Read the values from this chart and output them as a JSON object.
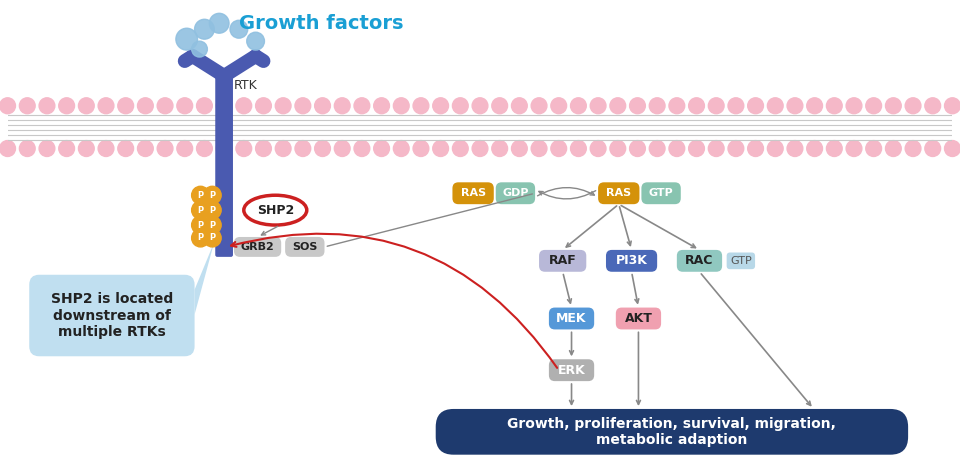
{
  "bg_color": "#ffffff",
  "growth_factors_text": "Growth factors",
  "growth_factors_color": "#1a9fd4",
  "rtk_text": "RTK",
  "membrane_pink": "#f5b8c8",
  "membrane_gray": "#d8d8d8",
  "p_circle_color": "#e8a020",
  "shp2_text": "SHP2",
  "grb2_text": "GRB2",
  "sos_text": "SOS",
  "ras_text": "RAS",
  "gdp_text": "GDP",
  "gtp_text": "GTP",
  "raf_text": "RAF",
  "pi3k_text": "PI3K",
  "rac_text": "RAC",
  "mek_text": "MEK",
  "akt_text": "AKT",
  "erk_text": "ERK",
  "bottom_box_text": "Growth, proliferation, survival, migration,\nmetabolic adaption",
  "bottom_box_color": "#1e3a6e",
  "shp2_callout_text": "SHP2 is located\ndownstream of\nmultiple RTKs",
  "shp2_callout_color": "#c0dff0",
  "ras_color": "#d4920a",
  "gdp_color": "#88c4b0",
  "gtp_color": "#88c4b0",
  "raf_color": "#b8b8d8",
  "pi3k_color": "#4a68b8",
  "rac_color": "#90c8c0",
  "gtp_right_color": "#b8d8e8",
  "mek_color": "#5598d8",
  "akt_color": "#f0a0b0",
  "erk_color": "#b0b0b0",
  "grb2_sos_color": "#c8c8c8",
  "arrow_gray": "#888888",
  "arrow_red": "#cc2020",
  "rtk_blue": "#4a5ab0",
  "bubble_color": "#90c0e0"
}
